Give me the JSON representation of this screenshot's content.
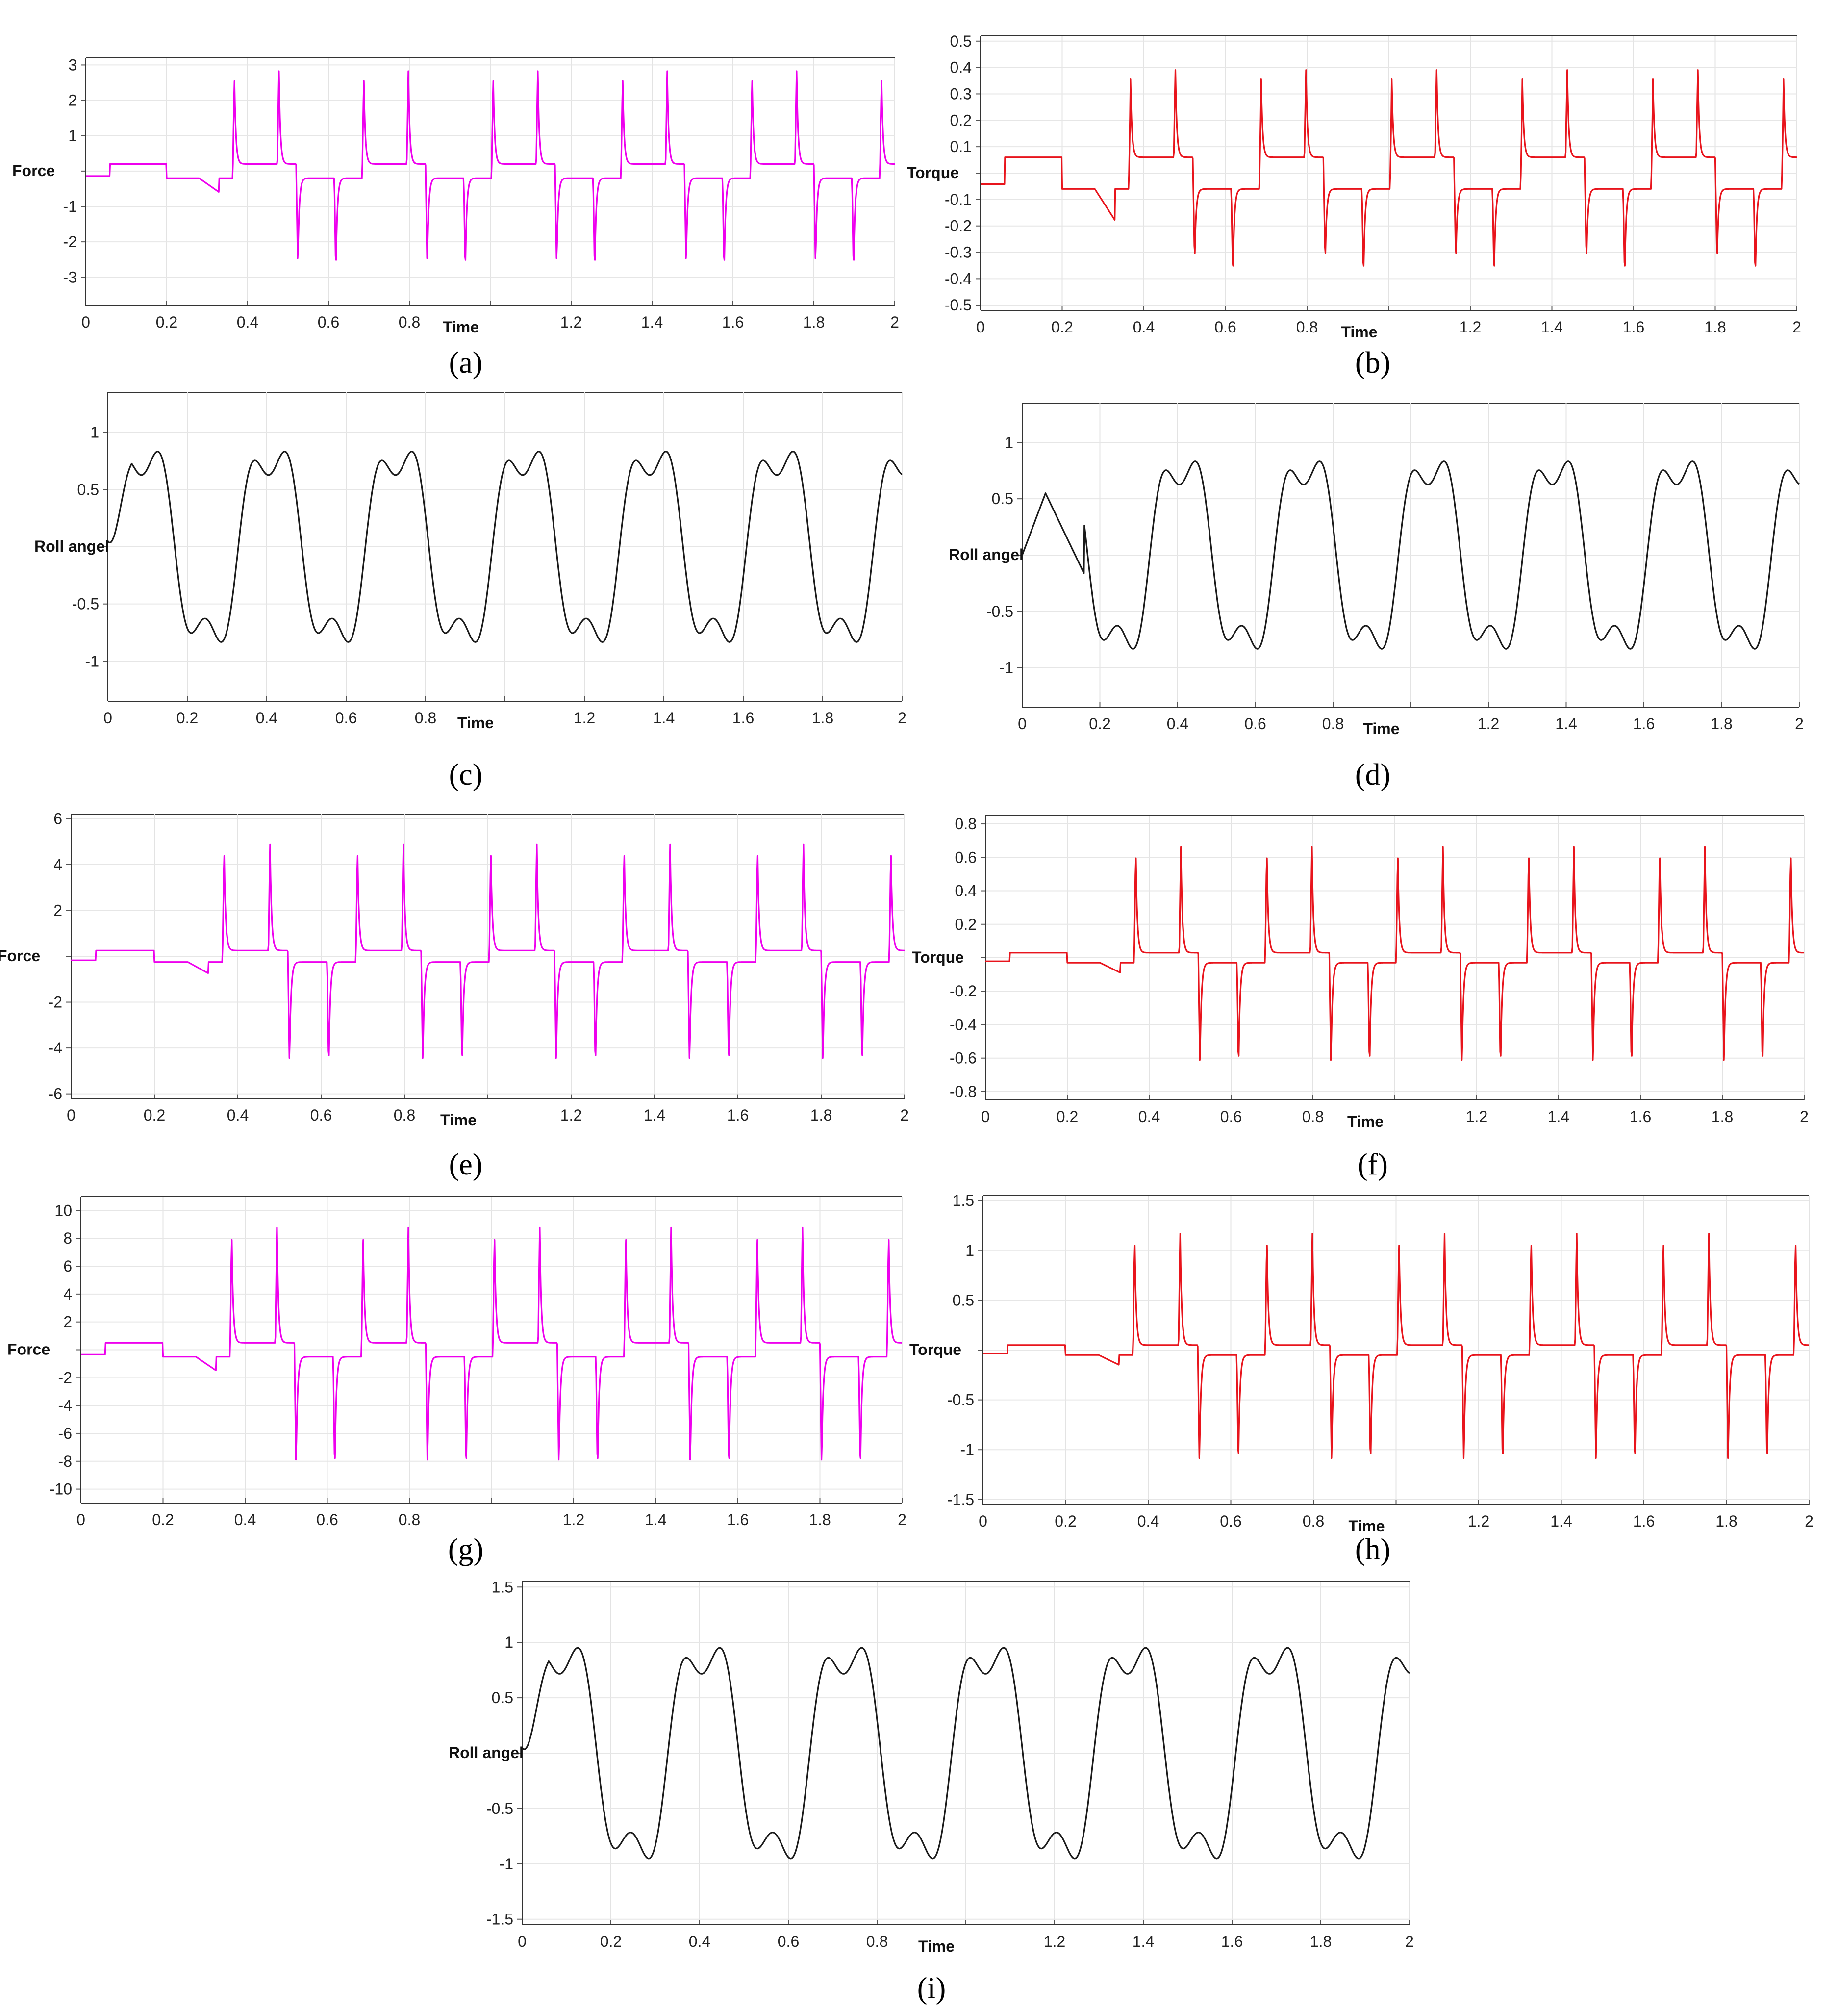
{
  "chart_data": [
    {
      "id": "a",
      "type": "line",
      "caption": "(a)",
      "signal": "force",
      "ylabel": "Force",
      "xlabel": "Time",
      "color": "#ee00ee",
      "x_ticks": [
        "0",
        "0.2",
        "0.4",
        "0.6",
        "0.8",
        "",
        "1.2",
        "1.4",
        "1.6",
        "1.8",
        "2"
      ],
      "y_ticks": [
        "3",
        "2",
        "1",
        "",
        "-1",
        "-2",
        "-3"
      ],
      "xlim": [
        0,
        2
      ],
      "ylim": [
        -3.8,
        3.2
      ],
      "params": {
        "base": 0.2,
        "spike": 2.9,
        "scale": 1
      }
    },
    {
      "id": "b",
      "type": "line",
      "caption": "(b)",
      "signal": "torque",
      "ylabel": "Torque",
      "xlabel": "Time",
      "color": "#e8141c",
      "x_ticks": [
        "0",
        "0.2",
        "0.4",
        "0.6",
        "0.8",
        "",
        "1.2",
        "1.4",
        "1.6",
        "1.8",
        "2"
      ],
      "y_ticks": [
        "0.5",
        "0.4",
        "0.3",
        "0.2",
        "0.1",
        "",
        "-0.1",
        "-0.2",
        "-0.3",
        "-0.4",
        "-0.5"
      ],
      "xlim": [
        0,
        2
      ],
      "ylim": [
        -0.52,
        0.52
      ],
      "params": {
        "base": 0.06,
        "spike": 0.4,
        "scale": 1
      }
    },
    {
      "id": "c",
      "type": "line",
      "caption": "(c)",
      "signal": "roll",
      "ylabel": "Roll angel",
      "xlabel": "Time",
      "color": "#1a1a1a",
      "x_ticks": [
        "0",
        "0.2",
        "0.4",
        "0.6",
        "0.8",
        "",
        "1.2",
        "1.4",
        "1.6",
        "1.8",
        "2"
      ],
      "y_ticks": [
        "1",
        "0.5",
        "",
        "-0.5",
        "-1"
      ],
      "xlim": [
        0,
        2
      ],
      "ylim": [
        -1.35,
        1.35
      ],
      "params": {
        "amp": 1.05,
        "start": "smooth"
      }
    },
    {
      "id": "d",
      "type": "line",
      "caption": "(d)",
      "signal": "roll",
      "ylabel": "Roll angel",
      "xlabel": "Time",
      "color": "#1a1a1a",
      "x_ticks": [
        "0",
        "0.2",
        "0.4",
        "0.6",
        "0.8",
        "",
        "1.2",
        "1.4",
        "1.6",
        "1.8",
        "2"
      ],
      "y_ticks": [
        "1",
        "0.5",
        "",
        "-0.5",
        "-1"
      ],
      "xlim": [
        0,
        2
      ],
      "ylim": [
        -1.35,
        1.35
      ],
      "params": {
        "amp": 1.05,
        "start": "ramp"
      }
    },
    {
      "id": "e",
      "type": "line",
      "caption": "(e)",
      "signal": "force",
      "ylabel": "Force",
      "xlabel": "Time",
      "color": "#ee00ee",
      "x_ticks": [
        "0",
        "0.2",
        "0.4",
        "0.6",
        "0.8",
        "",
        "1.2",
        "1.4",
        "1.6",
        "1.8",
        "2"
      ],
      "y_ticks": [
        "6",
        "4",
        "2",
        "",
        "-2",
        "-4",
        "-6"
      ],
      "xlim": [
        0,
        2
      ],
      "ylim": [
        -6.2,
        6.2
      ],
      "params": {
        "base": 0.25,
        "spike": 5.0,
        "scale": 1
      }
    },
    {
      "id": "f",
      "type": "line",
      "caption": "(f)",
      "signal": "torque",
      "ylabel": "Torque",
      "xlabel": "Time",
      "color": "#e8141c",
      "x_ticks": [
        "0",
        "0.2",
        "0.4",
        "0.6",
        "0.8",
        "",
        "1.2",
        "1.4",
        "1.6",
        "1.8",
        "2"
      ],
      "y_ticks": [
        "0.8",
        "0.6",
        "0.4",
        "0.2",
        "",
        "-0.2",
        "-0.4",
        "-0.6",
        "-0.8"
      ],
      "xlim": [
        0,
        2
      ],
      "ylim": [
        -0.85,
        0.85
      ],
      "params": {
        "base": 0.03,
        "spike": 0.68,
        "scale": 1
      }
    },
    {
      "id": "g",
      "type": "line",
      "caption": "(g)",
      "signal": "force",
      "ylabel": "Force",
      "xlabel": "",
      "color": "#ee00ee",
      "x_ticks": [
        "0",
        "0.2",
        "0.4",
        "0.6",
        "0.8",
        "",
        "1.2",
        "1.4",
        "1.6",
        "1.8",
        "2"
      ],
      "y_ticks": [
        "10",
        "8",
        "6",
        "4",
        "2",
        "",
        "-2",
        "-4",
        "-6",
        "-8",
        "-10"
      ],
      "xlim": [
        0,
        2
      ],
      "ylim": [
        -11,
        11
      ],
      "params": {
        "base": 0.5,
        "spike": 9.0,
        "scale": 1
      }
    },
    {
      "id": "h",
      "type": "line",
      "caption": "(h)",
      "signal": "torque",
      "ylabel": "Torque",
      "xlabel": "Time",
      "color": "#e8141c",
      "x_ticks": [
        "0",
        "0.2",
        "0.4",
        "0.6",
        "0.8",
        "",
        "1.2",
        "1.4",
        "1.6",
        "1.8",
        "2"
      ],
      "y_ticks": [
        "1.5",
        "1",
        "0.5",
        "",
        "-0.5",
        "-1",
        "-1.5"
      ],
      "xlim": [
        0,
        2
      ],
      "ylim": [
        -1.55,
        1.55
      ],
      "params": {
        "base": 0.05,
        "spike": 1.2,
        "scale": 1
      }
    },
    {
      "id": "i",
      "type": "line",
      "caption": "(i)",
      "signal": "roll",
      "ylabel": "Roll angel",
      "xlabel": "Time",
      "color": "#1a1a1a",
      "x_ticks": [
        "0",
        "0.2",
        "0.4",
        "0.6",
        "0.8",
        "",
        "1.2",
        "1.4",
        "1.6",
        "1.8",
        "2"
      ],
      "y_ticks": [
        "1.5",
        "1",
        "0.5",
        "",
        "-0.5",
        "-1",
        "-1.5"
      ],
      "xlim": [
        0,
        2
      ],
      "ylim": [
        -1.55,
        1.55
      ],
      "params": {
        "amp": 1.2,
        "start": "smooth"
      }
    }
  ]
}
